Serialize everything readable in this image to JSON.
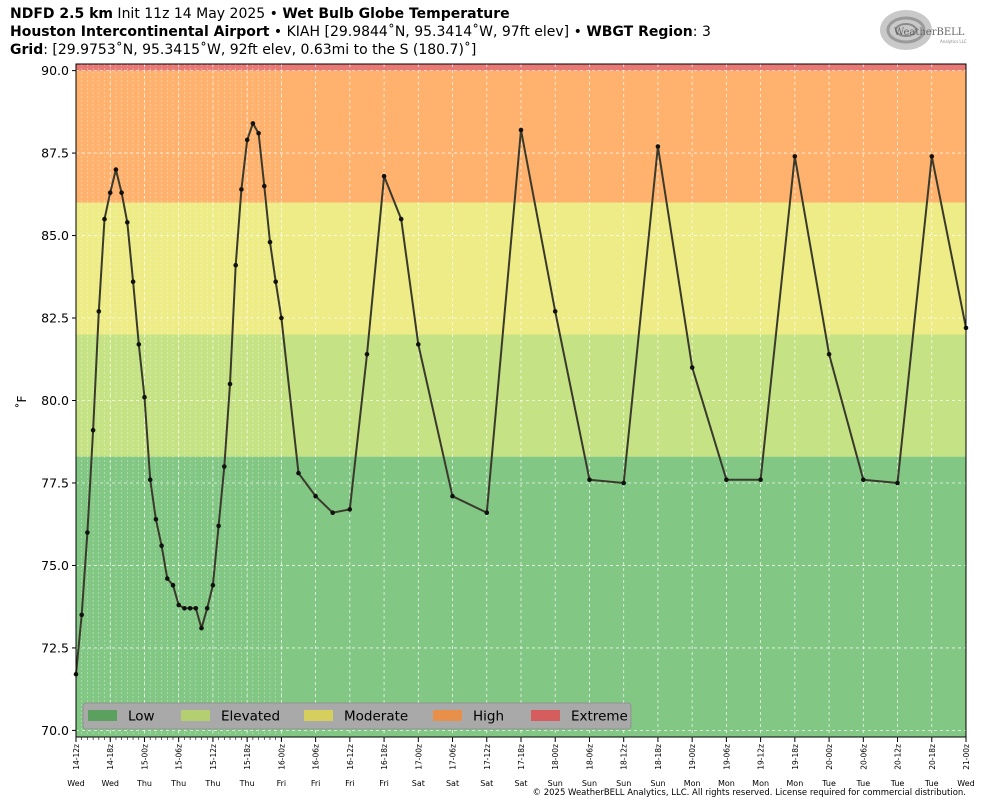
{
  "header": {
    "line1_bold1": "NDFD 2.5 km",
    "line1_text1": " Init 11z 14 May 2025 • ",
    "line1_bold2": "Wet Bulb Globe Temperature",
    "line2_bold1": "Houston Intercontinental Airport",
    "line2_text1": " • KIAH [29.9844˚N, 95.3414˚W, 97ft elev] • ",
    "line2_bold2": "WBGT Region",
    "line2_text2": ": 3",
    "line3_bold1": "Grid",
    "line3_text1": ": [29.9753˚N, 95.3415˚W, 92ft elev, 0.63mi to the S (180.7)˚]"
  },
  "logo": {
    "text_big": "WeatherBELL",
    "text_small": "Analytics LLC"
  },
  "copyright": "© 2025 WeatherBELL Analytics, LLC. All rights reserved. License required for commercial distribution.",
  "colors": {
    "low": "#82c784",
    "elevated": "#c5e384",
    "moderate": "#edec86",
    "high": "#ffb26e",
    "extreme": "#e87a76",
    "leg_low": "#5aa05f",
    "leg_elevated": "#b3cf6f",
    "leg_moderate": "#d6cf5e",
    "leg_high": "#e8904a",
    "leg_extreme": "#d65d5d",
    "line": "#3a3a2c",
    "legend_bg": "#a9a9a9"
  },
  "chart_data": {
    "type": "line",
    "ylabel": "˚F",
    "ylim": [
      69.8,
      90.2
    ],
    "yticks": [
      "70.0",
      "72.5",
      "75.0",
      "77.5",
      "80.0",
      "82.5",
      "85.0",
      "87.5",
      "90.0"
    ],
    "ytick_values": [
      70,
      72.5,
      75,
      77.5,
      80,
      82.5,
      85,
      87.5,
      90
    ],
    "xlim_hours": [
      12,
      192
    ],
    "grid": true,
    "legend_position": "bottom-left",
    "bands": [
      {
        "name": "Low",
        "from": 69.8,
        "to": 78.3,
        "color": "#82c784"
      },
      {
        "name": "Elevated",
        "from": 78.3,
        "to": 82.0,
        "color": "#c5e384"
      },
      {
        "name": "Moderate",
        "from": 82.0,
        "to": 86.0,
        "color": "#edec86"
      },
      {
        "name": "High",
        "from": 86.0,
        "to": 90.0,
        "color": "#ffb26e"
      },
      {
        "name": "Extreme",
        "from": 90.0,
        "to": 90.2,
        "color": "#e87a76"
      }
    ],
    "legend": [
      "Low",
      "Elevated",
      "Moderate",
      "High",
      "Extreme"
    ],
    "x_major": [
      {
        "hours": 12,
        "label": "14-12z",
        "day": "Wed"
      },
      {
        "hours": 18,
        "label": "14-18z",
        "day": "Wed"
      },
      {
        "hours": 24,
        "label": "15-00z",
        "day": "Thu"
      },
      {
        "hours": 30,
        "label": "15-06z",
        "day": "Thu"
      },
      {
        "hours": 36,
        "label": "15-12z",
        "day": "Thu"
      },
      {
        "hours": 42,
        "label": "15-18z",
        "day": "Thu"
      },
      {
        "hours": 48,
        "label": "16-00z",
        "day": "Fri"
      },
      {
        "hours": 54,
        "label": "16-06z",
        "day": "Fri"
      },
      {
        "hours": 60,
        "label": "16-12z",
        "day": "Fri"
      },
      {
        "hours": 66,
        "label": "16-18z",
        "day": "Fri"
      },
      {
        "hours": 72,
        "label": "17-00z",
        "day": "Sat"
      },
      {
        "hours": 78,
        "label": "17-06z",
        "day": "Sat"
      },
      {
        "hours": 84,
        "label": "17-12z",
        "day": "Sat"
      },
      {
        "hours": 90,
        "label": "17-18z",
        "day": "Sat"
      },
      {
        "hours": 96,
        "label": "18-00z",
        "day": "Sun"
      },
      {
        "hours": 102,
        "label": "18-06z",
        "day": "Sun"
      },
      {
        "hours": 108,
        "label": "18-12z",
        "day": "Sun"
      },
      {
        "hours": 114,
        "label": "18-18z",
        "day": "Sun"
      },
      {
        "hours": 120,
        "label": "19-00z",
        "day": "Mon"
      },
      {
        "hours": 126,
        "label": "19-06z",
        "day": "Mon"
      },
      {
        "hours": 132,
        "label": "19-12z",
        "day": "Mon"
      },
      {
        "hours": 138,
        "label": "19-18z",
        "day": "Mon"
      },
      {
        "hours": 144,
        "label": "20-00z",
        "day": "Tue"
      },
      {
        "hours": 150,
        "label": "20-06z",
        "day": "Tue"
      },
      {
        "hours": 156,
        "label": "20-12z",
        "day": "Tue"
      },
      {
        "hours": 162,
        "label": "20-18z",
        "day": "Tue"
      },
      {
        "hours": 168,
        "label": "21-00z",
        "day": "Wed"
      }
    ],
    "series": [
      {
        "points": [
          [
            12,
            71.7
          ],
          [
            13,
            73.5
          ],
          [
            14,
            76.0
          ],
          [
            15,
            79.1
          ],
          [
            16,
            82.7
          ],
          [
            17,
            85.5
          ],
          [
            18,
            86.3
          ],
          [
            19,
            87.0
          ],
          [
            20,
            86.3
          ],
          [
            21,
            85.4
          ],
          [
            22,
            83.6
          ],
          [
            23,
            81.7
          ],
          [
            24,
            80.1
          ],
          [
            25,
            77.6
          ],
          [
            26,
            76.4
          ],
          [
            27,
            75.6
          ],
          [
            28,
            74.6
          ],
          [
            29,
            74.4
          ],
          [
            30,
            73.8
          ],
          [
            31,
            73.7
          ],
          [
            32,
            73.7
          ],
          [
            33,
            73.7
          ],
          [
            34,
            73.1
          ],
          [
            35,
            73.7
          ],
          [
            36,
            74.4
          ],
          [
            37,
            76.2
          ],
          [
            38,
            78.0
          ],
          [
            39,
            80.5
          ],
          [
            40,
            84.1
          ],
          [
            41,
            86.4
          ],
          [
            42,
            87.9
          ],
          [
            43,
            88.4
          ],
          [
            44,
            88.1
          ],
          [
            45,
            86.5
          ],
          [
            46,
            84.8
          ],
          [
            47,
            83.6
          ],
          [
            48,
            82.5
          ],
          [
            51,
            77.8
          ],
          [
            54,
            77.1
          ],
          [
            57,
            76.6
          ],
          [
            60,
            76.7
          ],
          [
            63,
            81.4
          ],
          [
            66,
            86.8
          ],
          [
            69,
            85.5
          ],
          [
            72,
            81.7
          ],
          [
            78,
            77.1
          ],
          [
            84,
            76.6
          ],
          [
            90,
            88.2
          ],
          [
            96,
            82.7
          ],
          [
            102,
            77.6
          ],
          [
            108,
            77.5
          ],
          [
            114,
            87.7
          ],
          [
            120,
            81.0
          ],
          [
            126,
            77.6
          ],
          [
            132,
            77.6
          ],
          [
            138,
            87.4
          ],
          [
            144,
            81.4
          ],
          [
            150,
            77.6
          ],
          [
            156,
            77.5
          ],
          [
            162,
            87.4
          ],
          [
            168,
            82.2
          ]
        ]
      }
    ]
  }
}
